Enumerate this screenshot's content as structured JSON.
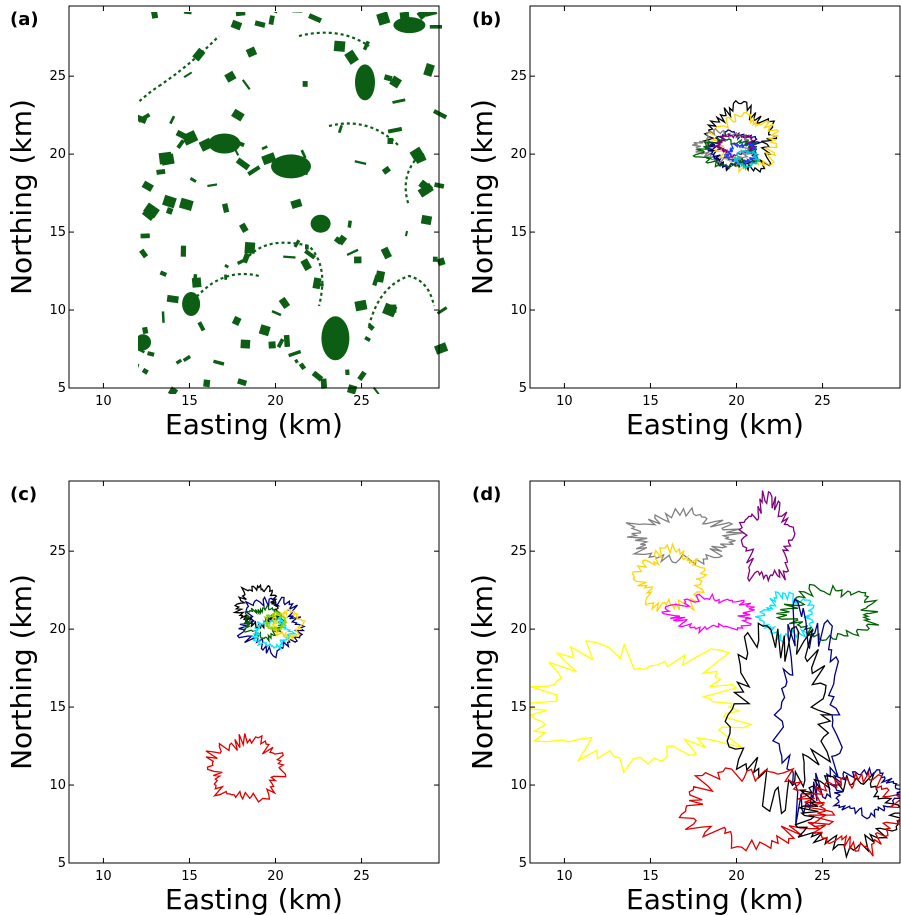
{
  "figure": {
    "xlabel": "Easting (km)",
    "ylabel": "Northing (km)"
  },
  "colors": {
    "habitat_dark": "#0b5e14",
    "habitat_light": "#8fe88f",
    "axes": "#000000"
  },
  "chart_data": [
    {
      "type": "scatter",
      "panel_label": "(a)",
      "xlabel": "Easting (km)",
      "ylabel": "Northing (km)",
      "xlim": [
        8,
        29.5
      ],
      "ylim": [
        5,
        29.5
      ],
      "xticks": [
        "10",
        "15",
        "20",
        "25"
      ],
      "yticks": [
        "5",
        "10",
        "15",
        "20",
        "25"
      ],
      "background_style": "dark",
      "grid": false,
      "series": []
    },
    {
      "type": "line",
      "panel_label": "(b)",
      "xlabel": "Easting (km)",
      "ylabel": "Northing (km)",
      "xlim": [
        8,
        29.5
      ],
      "ylim": [
        5,
        29.5
      ],
      "xticks": [
        "10",
        "15",
        "20",
        "25"
      ],
      "yticks": [
        "5",
        "10",
        "15",
        "20",
        "25"
      ],
      "background_style": "light",
      "grid": false,
      "series": [
        {
          "color": "#000000",
          "center": [
            20.2,
            21.0
          ],
          "radius": [
            1.8,
            1.9
          ]
        },
        {
          "color": "#ffd700",
          "center": [
            20.5,
            20.8
          ],
          "radius": [
            1.7,
            1.6
          ]
        },
        {
          "color": "#000080",
          "center": [
            19.8,
            20.3
          ],
          "radius": [
            1.3,
            1.0
          ]
        },
        {
          "color": "#808080",
          "center": [
            19.2,
            20.5
          ],
          "radius": [
            1.4,
            0.9
          ]
        },
        {
          "color": "#006400",
          "center": [
            19.5,
            20.1
          ],
          "radius": [
            1.6,
            0.8
          ]
        },
        {
          "color": "#800080",
          "center": [
            19.9,
            20.6
          ],
          "radius": [
            1.0,
            0.6
          ]
        },
        {
          "color": "#1e3cff",
          "center": [
            20.3,
            20.0
          ],
          "radius": [
            0.8,
            0.6
          ]
        },
        {
          "color": "#00c8c8",
          "center": [
            20.6,
            19.7
          ],
          "radius": [
            0.6,
            0.5
          ]
        }
      ]
    },
    {
      "type": "line",
      "panel_label": "(c)",
      "xlabel": "Easting (km)",
      "ylabel": "Northing (km)",
      "xlim": [
        8,
        29.5
      ],
      "ylim": [
        5,
        29.5
      ],
      "xticks": [
        "10",
        "15",
        "20",
        "25"
      ],
      "yticks": [
        "5",
        "10",
        "15",
        "20",
        "25"
      ],
      "background_style": "light",
      "grid": false,
      "series": [
        {
          "color": "#000000",
          "center": [
            19.0,
            21.5
          ],
          "radius": [
            1.1,
            1.2
          ]
        },
        {
          "color": "#000080",
          "center": [
            19.8,
            20.3
          ],
          "radius": [
            1.6,
            1.6
          ]
        },
        {
          "color": "#006400",
          "center": [
            19.3,
            20.4
          ],
          "radius": [
            1.0,
            0.9
          ]
        },
        {
          "color": "#00e5ff",
          "center": [
            19.8,
            19.7
          ],
          "radius": [
            1.0,
            0.8
          ]
        },
        {
          "color": "#ffd700",
          "center": [
            20.7,
            20.3
          ],
          "radius": [
            0.8,
            0.8
          ]
        },
        {
          "color": "#8fd100",
          "center": [
            20.0,
            20.5
          ],
          "radius": [
            0.5,
            0.5
          ]
        },
        {
          "color": "#e00000",
          "center": [
            18.3,
            11.0
          ],
          "radius": [
            2.0,
            1.9
          ]
        }
      ]
    },
    {
      "type": "line",
      "panel_label": "(d)",
      "xlabel": "Easting (km)",
      "ylabel": "Northing (km)",
      "xlim": [
        8,
        29.5
      ],
      "ylim": [
        5,
        29.5
      ],
      "xticks": [
        "10",
        "15",
        "20",
        "25"
      ],
      "yticks": [
        "5",
        "10",
        "15",
        "20",
        "25"
      ],
      "background_style": "light",
      "grid": false,
      "series": [
        {
          "color": "#808080",
          "center": [
            16.8,
            25.9
          ],
          "radius": [
            2.8,
            1.5
          ]
        },
        {
          "color": "#800080",
          "center": [
            21.8,
            25.7
          ],
          "radius": [
            1.3,
            2.5
          ]
        },
        {
          "color": "#ffd700",
          "center": [
            16.2,
            23.2
          ],
          "radius": [
            1.8,
            1.8
          ]
        },
        {
          "color": "#ff00ff",
          "center": [
            18.5,
            21.0
          ],
          "radius": [
            2.2,
            1.0
          ]
        },
        {
          "color": "#00e5ff",
          "center": [
            23.0,
            20.8
          ],
          "radius": [
            1.5,
            1.3
          ]
        },
        {
          "color": "#006400",
          "center": [
            25.5,
            21.0
          ],
          "radius": [
            2.5,
            1.5
          ]
        },
        {
          "color": "#000080",
          "center": [
            24.2,
            14.5
          ],
          "radius": [
            1.6,
            6.0
          ]
        },
        {
          "color": "#ffff00",
          "center": [
            14.2,
            15.0
          ],
          "radius": [
            6.0,
            3.5
          ]
        },
        {
          "color": "#000000",
          "center": [
            22.5,
            14.5
          ],
          "radius": [
            2.6,
            5.0
          ]
        },
        {
          "color": "#e00000",
          "center": [
            21.0,
            8.5
          ],
          "radius": [
            3.6,
            2.3
          ]
        },
        {
          "color": "#000000",
          "center": [
            26.5,
            8.2
          ],
          "radius": [
            2.6,
            2.2
          ]
        },
        {
          "color": "#000080",
          "center": [
            27.5,
            9.5
          ],
          "radius": [
            1.8,
            1.3
          ]
        },
        {
          "color": "#e00000",
          "center": [
            27.0,
            8.2
          ],
          "radius": [
            2.3,
            2.2
          ]
        }
      ]
    }
  ]
}
